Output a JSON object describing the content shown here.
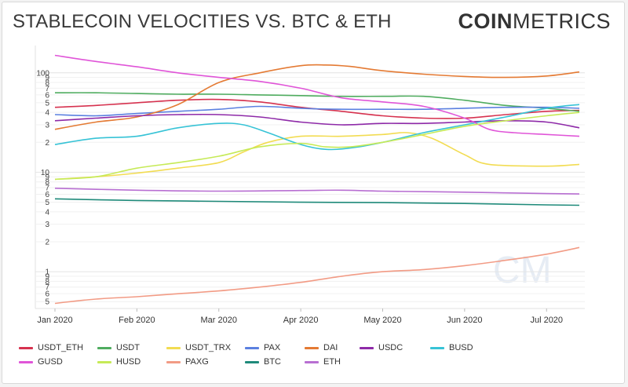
{
  "title": "STABLECOIN VELOCITIES VS. BTC & ETH",
  "brand": {
    "bold": "COIN",
    "light": "METRICS"
  },
  "watermark": "CM",
  "chart_data": {
    "type": "line",
    "scale": "log",
    "ylim": [
      0.45,
      175
    ],
    "y_tick_labels": [
      {
        "v": 0.5,
        "t": "5"
      },
      {
        "v": 0.6,
        "t": "6"
      },
      {
        "v": 0.7,
        "t": "7"
      },
      {
        "v": 0.8,
        "t": "8"
      },
      {
        "v": 0.9,
        "t": "9"
      },
      {
        "v": 1,
        "t": "1"
      },
      {
        "v": 2,
        "t": "2"
      },
      {
        "v": 3,
        "t": "3"
      },
      {
        "v": 4,
        "t": "4"
      },
      {
        "v": 5,
        "t": "5"
      },
      {
        "v": 6,
        "t": "6"
      },
      {
        "v": 7,
        "t": "7"
      },
      {
        "v": 8,
        "t": "8"
      },
      {
        "v": 9,
        "t": "9"
      },
      {
        "v": 10,
        "t": "10"
      },
      {
        "v": 20,
        "t": "2"
      },
      {
        "v": 30,
        "t": "3"
      },
      {
        "v": 40,
        "t": "4"
      },
      {
        "v": 50,
        "t": "5"
      },
      {
        "v": 60,
        "t": "6"
      },
      {
        "v": 70,
        "t": "7"
      },
      {
        "v": 80,
        "t": "8"
      },
      {
        "v": 90,
        "t": "9"
      },
      {
        "v": 100,
        "t": "100"
      }
    ],
    "x_ticks": [
      {
        "label": "Jan 2020",
        "t": 0.0
      },
      {
        "label": "Feb 2020",
        "t": 1.0
      },
      {
        "label": "Mar 2020",
        "t": 2.0
      },
      {
        "label": "Apr 2020",
        "t": 3.0
      },
      {
        "label": "May 2020",
        "t": 4.0
      },
      {
        "label": "Jun 2020",
        "t": 5.0
      },
      {
        "label": "Jul 2020",
        "t": 6.0
      }
    ],
    "x_range": [
      0,
      6.4
    ],
    "series": [
      {
        "name": "USDT_ETH",
        "color": "#d6324f",
        "points": [
          [
            0,
            45
          ],
          [
            0.5,
            47
          ],
          [
            1,
            50
          ],
          [
            1.5,
            53
          ],
          [
            2,
            54
          ],
          [
            2.5,
            51
          ],
          [
            3,
            45
          ],
          [
            3.5,
            41
          ],
          [
            4,
            37
          ],
          [
            4.5,
            35
          ],
          [
            5,
            35
          ],
          [
            5.5,
            38
          ],
          [
            6,
            41
          ],
          [
            6.4,
            42
          ]
        ]
      },
      {
        "name": "USDT",
        "color": "#4fac5f",
        "points": [
          [
            0,
            63
          ],
          [
            0.5,
            63
          ],
          [
            1,
            62
          ],
          [
            1.5,
            61
          ],
          [
            2,
            61
          ],
          [
            2.5,
            60
          ],
          [
            3,
            59
          ],
          [
            3.5,
            58
          ],
          [
            4,
            58
          ],
          [
            4.5,
            58
          ],
          [
            5,
            53
          ],
          [
            5.5,
            47
          ],
          [
            6,
            44
          ],
          [
            6.4,
            41
          ]
        ]
      },
      {
        "name": "USDT_TRX",
        "color": "#f2dc52",
        "points": [
          [
            0,
            8.5
          ],
          [
            0.5,
            9
          ],
          [
            1,
            9.8
          ],
          [
            1.5,
            11
          ],
          [
            2,
            12.5
          ],
          [
            2.3,
            16
          ],
          [
            2.6,
            20
          ],
          [
            3,
            23
          ],
          [
            3.5,
            23
          ],
          [
            4,
            24
          ],
          [
            4.3,
            25
          ],
          [
            4.6,
            22
          ],
          [
            5,
            15
          ],
          [
            5.3,
            12
          ],
          [
            6,
            11.5
          ],
          [
            6.4,
            12
          ]
        ]
      },
      {
        "name": "PAX",
        "color": "#5b80e0",
        "points": [
          [
            0,
            38
          ],
          [
            0.5,
            37
          ],
          [
            1,
            39
          ],
          [
            1.5,
            41
          ],
          [
            2,
            43
          ],
          [
            2.5,
            46
          ],
          [
            3,
            44
          ],
          [
            3.5,
            43
          ],
          [
            4,
            43
          ],
          [
            4.5,
            43
          ],
          [
            5,
            44
          ],
          [
            5.5,
            45
          ],
          [
            6,
            45
          ],
          [
            6.4,
            44
          ]
        ]
      },
      {
        "name": "DAI",
        "color": "#e47a33",
        "points": [
          [
            0,
            27
          ],
          [
            0.5,
            32
          ],
          [
            1,
            36
          ],
          [
            1.5,
            48
          ],
          [
            2,
            80
          ],
          [
            2.5,
            100
          ],
          [
            3,
            118
          ],
          [
            3.3,
            120
          ],
          [
            3.6,
            116
          ],
          [
            4,
            105
          ],
          [
            4.5,
            97
          ],
          [
            5,
            92
          ],
          [
            5.5,
            90
          ],
          [
            6,
            93
          ],
          [
            6.4,
            102
          ]
        ]
      },
      {
        "name": "USDC",
        "color": "#8e2aa8",
        "points": [
          [
            0,
            33
          ],
          [
            0.5,
            35
          ],
          [
            1,
            37
          ],
          [
            1.5,
            38
          ],
          [
            2,
            38
          ],
          [
            2.5,
            36
          ],
          [
            3,
            32
          ],
          [
            3.5,
            30
          ],
          [
            4,
            31
          ],
          [
            4.5,
            31
          ],
          [
            5,
            32
          ],
          [
            5.5,
            33
          ],
          [
            6,
            32
          ],
          [
            6.4,
            28
          ]
        ]
      },
      {
        "name": "BUSD",
        "color": "#37c3d6",
        "points": [
          [
            0,
            19
          ],
          [
            0.5,
            22
          ],
          [
            1,
            23
          ],
          [
            1.5,
            28
          ],
          [
            2,
            31
          ],
          [
            2.3,
            30
          ],
          [
            2.6,
            25
          ],
          [
            3,
            19
          ],
          [
            3.3,
            17
          ],
          [
            3.6,
            17.5
          ],
          [
            4,
            20
          ],
          [
            4.5,
            25
          ],
          [
            5,
            30
          ],
          [
            5.5,
            36
          ],
          [
            6,
            44
          ],
          [
            6.4,
            48
          ]
        ]
      },
      {
        "name": "GUSD",
        "color": "#e055d8",
        "points": [
          [
            0,
            150
          ],
          [
            0.5,
            130
          ],
          [
            1,
            115
          ],
          [
            1.5,
            100
          ],
          [
            2,
            90
          ],
          [
            2.5,
            82
          ],
          [
            3,
            70
          ],
          [
            3.5,
            56
          ],
          [
            4,
            51
          ],
          [
            4.5,
            46
          ],
          [
            5,
            35
          ],
          [
            5.3,
            27
          ],
          [
            5.6,
            25
          ],
          [
            6,
            24
          ],
          [
            6.4,
            23
          ]
        ]
      },
      {
        "name": "HUSD",
        "color": "#c6ea57",
        "points": [
          [
            0,
            8.5
          ],
          [
            0.5,
            9
          ],
          [
            1,
            11
          ],
          [
            1.5,
            12.5
          ],
          [
            2,
            14.5
          ],
          [
            2.5,
            18
          ],
          [
            3,
            19.5
          ],
          [
            3.3,
            18
          ],
          [
            3.6,
            18
          ],
          [
            4,
            20
          ],
          [
            4.5,
            24
          ],
          [
            5,
            29
          ],
          [
            5.5,
            33
          ],
          [
            6,
            37
          ],
          [
            6.4,
            40
          ]
        ]
      },
      {
        "name": "PAXG",
        "color": "#f29b85",
        "points": [
          [
            0,
            0.48
          ],
          [
            0.5,
            0.53
          ],
          [
            1,
            0.56
          ],
          [
            1.5,
            0.6
          ],
          [
            2,
            0.64
          ],
          [
            2.5,
            0.7
          ],
          [
            3,
            0.78
          ],
          [
            3.5,
            0.9
          ],
          [
            4,
            1.0
          ],
          [
            4.5,
            1.05
          ],
          [
            5,
            1.15
          ],
          [
            5.5,
            1.3
          ],
          [
            6,
            1.5
          ],
          [
            6.4,
            1.75
          ]
        ]
      },
      {
        "name": "BTC",
        "color": "#1f8a7a",
        "points": [
          [
            0,
            5.4
          ],
          [
            1,
            5.2
          ],
          [
            2,
            5.1
          ],
          [
            3,
            5.0
          ],
          [
            4,
            4.95
          ],
          [
            5,
            4.85
          ],
          [
            6,
            4.7
          ],
          [
            6.4,
            4.65
          ]
        ]
      },
      {
        "name": "ETH",
        "color": "#b86fd2",
        "points": [
          [
            0,
            6.9
          ],
          [
            1,
            6.6
          ],
          [
            2,
            6.45
          ],
          [
            3,
            6.55
          ],
          [
            3.5,
            6.6
          ],
          [
            4,
            6.45
          ],
          [
            5,
            6.3
          ],
          [
            6,
            6.1
          ],
          [
            6.4,
            6.05
          ]
        ]
      }
    ]
  }
}
